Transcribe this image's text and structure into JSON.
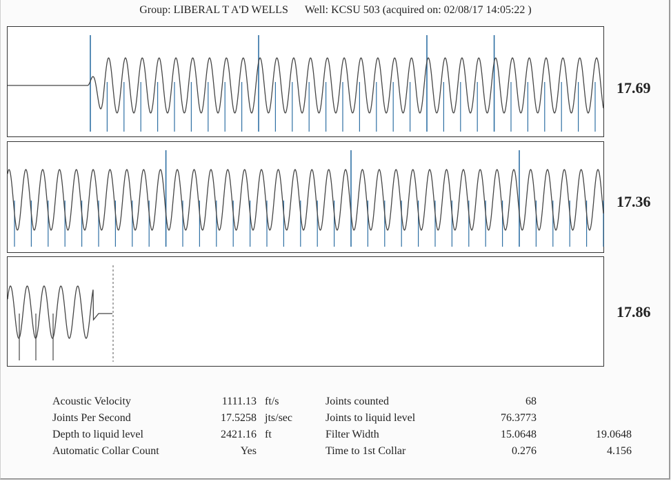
{
  "header": {
    "group": "Group: LIBERAL T A'D WELLS",
    "well": "Well: KCSU 503 (acquired on: 02/08/17 14:05:22 )"
  },
  "chart_data": [
    {
      "type": "line",
      "name": "panel-1",
      "rate_label": "17.69",
      "colors": {
        "trace": "#444444",
        "collar": "#2e6fa3"
      }
    },
    {
      "type": "line",
      "name": "panel-2",
      "rate_label": "17.36",
      "colors": {
        "trace": "#444444",
        "collar": "#2e6fa3"
      }
    },
    {
      "type": "line",
      "name": "panel-3",
      "rate_label": "17.86",
      "colors": {
        "trace": "#444444",
        "collar": "#444444"
      }
    }
  ],
  "stats": {
    "left": [
      {
        "label": "Acoustic Velocity",
        "value": "1111.13",
        "unit": "ft/s"
      },
      {
        "label": "Joints Per Second",
        "value": "17.5258",
        "unit": "jts/sec"
      },
      {
        "label": "Depth to liquid level",
        "value": "2421.16",
        "unit": "ft"
      },
      {
        "label": "Automatic Collar Count",
        "value": "Yes",
        "unit": ""
      }
    ],
    "right": [
      {
        "label": "Joints counted",
        "value": "68",
        "value2": ""
      },
      {
        "label": "Joints to liquid level",
        "value": "76.3773",
        "value2": ""
      },
      {
        "label": "Filter Width",
        "value": "15.0648",
        "value2": "19.0648"
      },
      {
        "label": "Time to 1st Collar",
        "value": "0.276",
        "value2": "4.156"
      }
    ]
  }
}
